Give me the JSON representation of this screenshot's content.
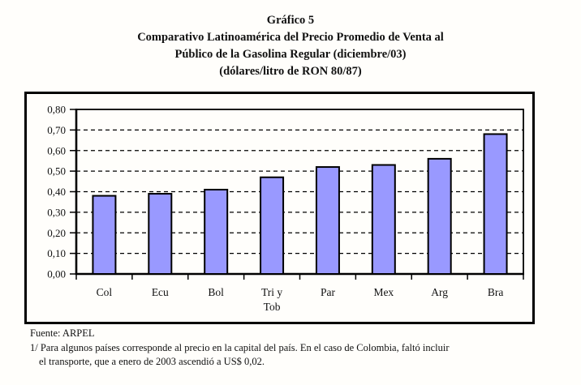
{
  "title": {
    "line1": "Gráfico 5",
    "line2": "Comparativo Latinoamérica del Precio Promedio de Venta al",
    "line3": "Público de la Gasolina Regular (diciembre/03)",
    "line4": "(dólares/litro de RON 80/87)"
  },
  "chart_data": {
    "type": "bar",
    "figure_label": "Gráfico 5",
    "title": "Comparativo Latinoamérica del Precio Promedio de Venta al Público de la Gasolina Regular (diciembre/03)",
    "subtitle": "(dólares/litro de RON 80/87)",
    "categories": [
      "Col",
      "Ecu",
      "Bol",
      "Tri y Tob",
      "Par",
      "Mex",
      "Arg",
      "Bra"
    ],
    "category_display_lines": [
      [
        "Col"
      ],
      [
        "Ecu"
      ],
      [
        "Bol"
      ],
      [
        "Tri y",
        "Tob"
      ],
      [
        "Par"
      ],
      [
        "Mex"
      ],
      [
        "Arg"
      ],
      [
        "Bra"
      ]
    ],
    "values": [
      0.38,
      0.39,
      0.41,
      0.47,
      0.52,
      0.53,
      0.56,
      0.68
    ],
    "xlabel": "",
    "ylabel": "",
    "ylim": [
      0,
      0.8
    ],
    "ytick_step": 0.1,
    "ytick_labels": [
      "0,00",
      "0,10",
      "0,20",
      "0,30",
      "0,40",
      "0,50",
      "0,60",
      "0,70",
      "0,80"
    ],
    "grid": "horizontal-dashed",
    "legend": "none",
    "bar_fill_color": "#9999FF",
    "bar_border_color": "#000000",
    "axis_color": "#000000"
  },
  "footer": {
    "source": "Fuente: ARPEL",
    "note_line1": "1/ Para algunos países corresponde al precio en la capital del país. En el caso de Colombia, faltó incluir",
    "note_line2": "el transporte, que a enero de 2003 ascendió a US$ 0,02."
  }
}
